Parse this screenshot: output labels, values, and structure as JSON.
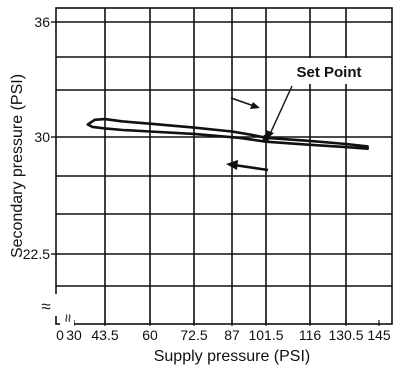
{
  "chart_data": {
    "type": "line",
    "title": "",
    "xlabel": "Supply pressure (PSI)",
    "ylabel": "Secondary pressure (PSI)",
    "x_ticks": [
      0,
      30,
      43.5,
      60,
      72.5,
      87,
      101.5,
      116,
      130.5,
      145
    ],
    "x_tick_labels": [
      "0",
      "30",
      "43.5",
      "60",
      "72.5",
      "87",
      "101.5",
      "116",
      "130.5",
      "145"
    ],
    "x_axis_break": "≈",
    "y_ticks": [
      22.5,
      30,
      36
    ],
    "y_tick_labels": [
      "22.5",
      "30",
      "36"
    ],
    "y_axis_break": "≈",
    "xlim": [
      0,
      150
    ],
    "ylim": [
      17.5,
      37
    ],
    "grid": true,
    "annotation": {
      "text": "Set Point",
      "x": 101.5,
      "y": 30
    },
    "arrows": [
      {
        "direction": "increasing supply pressure (upper branch)"
      },
      {
        "direction": "decreasing supply pressure (lower branch)"
      }
    ],
    "series": [
      {
        "name": "",
        "points": [
          [
            36,
            30.8
          ],
          [
            39,
            31.1
          ],
          [
            43.5,
            31.15
          ],
          [
            50,
            31.0
          ],
          [
            60,
            30.85
          ],
          [
            72.5,
            30.6
          ],
          [
            87,
            30.35
          ],
          [
            95,
            30.15
          ],
          [
            101.5,
            29.95
          ],
          [
            116,
            29.75
          ],
          [
            130.5,
            29.55
          ],
          [
            140,
            29.4
          ],
          [
            140,
            29.25
          ],
          [
            130.5,
            29.35
          ],
          [
            116,
            29.5
          ],
          [
            101.5,
            29.7
          ],
          [
            90,
            29.95
          ],
          [
            72.5,
            30.2
          ],
          [
            60,
            30.35
          ],
          [
            50,
            30.45
          ],
          [
            43.5,
            30.55
          ],
          [
            38,
            30.65
          ],
          [
            36,
            30.8
          ]
        ]
      }
    ]
  }
}
